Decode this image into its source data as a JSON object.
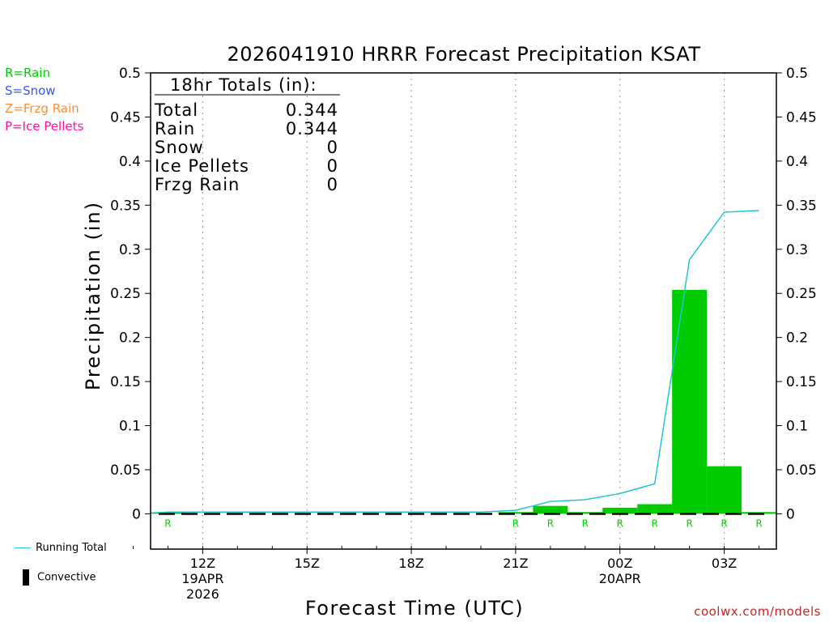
{
  "type_legend": [
    {
      "text": "R=Rain",
      "color": "#00cc00"
    },
    {
      "text": "S=Snow",
      "color": "#3355ff"
    },
    {
      "text": "Z=Frzg Rain",
      "color": "#ff8c33"
    },
    {
      "text": "P=Ice Pellets",
      "color": "#ff1199"
    }
  ],
  "footer_legend": {
    "running_total": "Running Total",
    "convective": "Convective",
    "running_color": "#22c4d0"
  },
  "totals": {
    "header": "18hr Totals (in):",
    "rows": [
      {
        "label": "Total",
        "value": "0.344"
      },
      {
        "label": "Rain",
        "value": "0.344"
      },
      {
        "label": "Snow",
        "value": "0"
      },
      {
        "label": "Ice Pellets",
        "value": "0"
      },
      {
        "label": "Frzg Rain",
        "value": "0"
      }
    ]
  },
  "credit": "coolwx.com/models",
  "chart_data": {
    "type": "bar",
    "title": "2026041910 HRRR Forecast Precipitation KSAT",
    "xlabel": "Forecast Time (UTC)",
    "ylabel": "Precipitation (in)",
    "ylim": [
      -0.04,
      0.5
    ],
    "yticks": [
      0,
      0.05,
      0.1,
      0.15,
      0.2,
      0.25,
      0.3,
      0.35,
      0.4,
      0.45,
      0.5
    ],
    "ytick_labels": [
      "0",
      "0.05",
      "0.1",
      "0.15",
      "0.2",
      "0.25",
      "0.3",
      "0.35",
      "0.4",
      "0.45",
      "0.5"
    ],
    "x_hours": [
      10,
      11,
      12,
      13,
      14,
      15,
      16,
      17,
      18,
      19,
      20,
      21,
      22,
      23,
      24,
      25,
      26,
      27,
      28
    ],
    "xticks": [
      {
        "hour": 12,
        "label": "12Z",
        "sub": [
          "19APR",
          "2026"
        ]
      },
      {
        "hour": 15,
        "label": "15Z",
        "sub": []
      },
      {
        "hour": 18,
        "label": "18Z",
        "sub": []
      },
      {
        "hour": 21,
        "label": "21Z",
        "sub": []
      },
      {
        "hour": 24,
        "label": "00Z",
        "sub": [
          "20APR"
        ]
      },
      {
        "hour": 27,
        "label": "03Z",
        "sub": []
      }
    ],
    "grid": "vertical-dotted",
    "series": [
      {
        "name": "Rain",
        "color": "#00cc00",
        "bars": [
          {
            "start": 10.5,
            "end": 11.5,
            "value": 0.0
          },
          {
            "start": 20.5,
            "end": 21.5,
            "value": 0.002
          },
          {
            "start": 21.5,
            "end": 22.5,
            "value": 0.009
          },
          {
            "start": 22.5,
            "end": 23.5,
            "value": 0.002
          },
          {
            "start": 23.5,
            "end": 24.5,
            "value": 0.007
          },
          {
            "start": 24.5,
            "end": 25.5,
            "value": 0.011
          },
          {
            "start": 25.5,
            "end": 26.5,
            "value": 0.254
          },
          {
            "start": 26.5,
            "end": 27.5,
            "value": 0.054
          },
          {
            "start": 27.5,
            "end": 28.5,
            "value": 0.002
          }
        ]
      },
      {
        "name": "Running Total",
        "color": "#22c4d0",
        "points": [
          [
            10.5,
            0.001
          ],
          [
            11,
            0.002
          ],
          [
            12,
            0.002
          ],
          [
            13,
            0.002
          ],
          [
            14,
            0.002
          ],
          [
            15,
            0.002
          ],
          [
            16,
            0.002
          ],
          [
            17,
            0.002
          ],
          [
            18,
            0.002
          ],
          [
            19,
            0.002
          ],
          [
            20,
            0.002
          ],
          [
            21,
            0.004
          ],
          [
            22,
            0.014
          ],
          [
            23,
            0.016
          ],
          [
            24,
            0.023
          ],
          [
            25,
            0.034
          ],
          [
            26,
            0.288
          ],
          [
            27,
            0.342
          ],
          [
            28,
            0.344
          ]
        ]
      },
      {
        "name": "Convective",
        "color": "#000000",
        "start": 10.5,
        "end": 28.5,
        "value": 0.0
      }
    ],
    "type_markers": [
      {
        "hour": 11,
        "label": "R"
      },
      {
        "hour": 21,
        "label": "R"
      },
      {
        "hour": 22,
        "label": "R"
      },
      {
        "hour": 23,
        "label": "R"
      },
      {
        "hour": 24,
        "label": "R"
      },
      {
        "hour": 25,
        "label": "R"
      },
      {
        "hour": 26,
        "label": "R"
      },
      {
        "hour": 27,
        "label": "R"
      },
      {
        "hour": 28,
        "label": "R"
      }
    ]
  }
}
